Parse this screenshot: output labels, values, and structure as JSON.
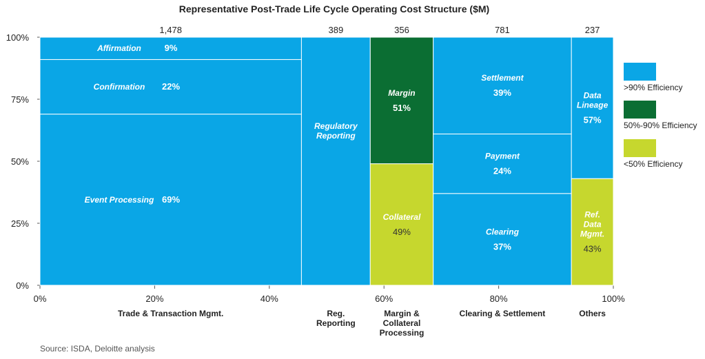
{
  "chart_data": {
    "type": "marimekko",
    "title": "Representative Post-Trade Life Cycle Operating Cost Structure ($M)",
    "source": "Source: ISDA, Deloitte analysis",
    "y_ticks": [
      "0%",
      "25%",
      "50%",
      "75%",
      "100%"
    ],
    "x_ticks": [
      "0%",
      "20%",
      "40%",
      "60%",
      "80%",
      "100%"
    ],
    "colors": {
      "high": "#0AA6E6",
      "mid": "#0B6E33",
      "low": "#C6D72E"
    },
    "legend": [
      {
        "label": ">90% Efficiency",
        "key": "high"
      },
      {
        "label": "50%-90% Efficiency",
        "key": "mid"
      },
      {
        "label": "<50% Efficiency",
        "key": "low"
      }
    ],
    "columns": [
      {
        "category": "Trade & Transaction Mgmt.",
        "total": 1478,
        "total_label": "1,478",
        "segments": [
          {
            "name": "Event Processing",
            "pct": 69,
            "pct_label": "69%",
            "eff": "high"
          },
          {
            "name": "Confirmation",
            "pct": 22,
            "pct_label": "22%",
            "eff": "high"
          },
          {
            "name": "Affirmation",
            "pct": 9,
            "pct_label": "9%",
            "eff": "high"
          }
        ]
      },
      {
        "category": "Reg. Reporting",
        "total": 389,
        "total_label": "389",
        "segments": [
          {
            "name": "Regulatory Reporting",
            "pct": 100,
            "pct_label": "",
            "eff": "high"
          }
        ]
      },
      {
        "category": "Margin & Collateral Processing",
        "total": 356,
        "total_label": "356",
        "segments": [
          {
            "name": "Collateral",
            "pct": 49,
            "pct_label": "49%",
            "eff": "low"
          },
          {
            "name": "Margin",
            "pct": 51,
            "pct_label": "51%",
            "eff": "mid"
          }
        ]
      },
      {
        "category": "Clearing & Settlement",
        "total": 781,
        "total_label": "781",
        "segments": [
          {
            "name": "Clearing",
            "pct": 37,
            "pct_label": "37%",
            "eff": "high"
          },
          {
            "name": "Payment",
            "pct": 24,
            "pct_label": "24%",
            "eff": "high"
          },
          {
            "name": "Settlement",
            "pct": 39,
            "pct_label": "39%",
            "eff": "high"
          }
        ]
      },
      {
        "category": "Others",
        "total": 237,
        "total_label": "237",
        "segments": [
          {
            "name": "Ref. Data Mgmt.",
            "pct": 43,
            "pct_label": "43%",
            "eff": "low"
          },
          {
            "name": "Data Lineage",
            "pct": 57,
            "pct_label": "57%",
            "eff": "high"
          }
        ]
      }
    ]
  }
}
